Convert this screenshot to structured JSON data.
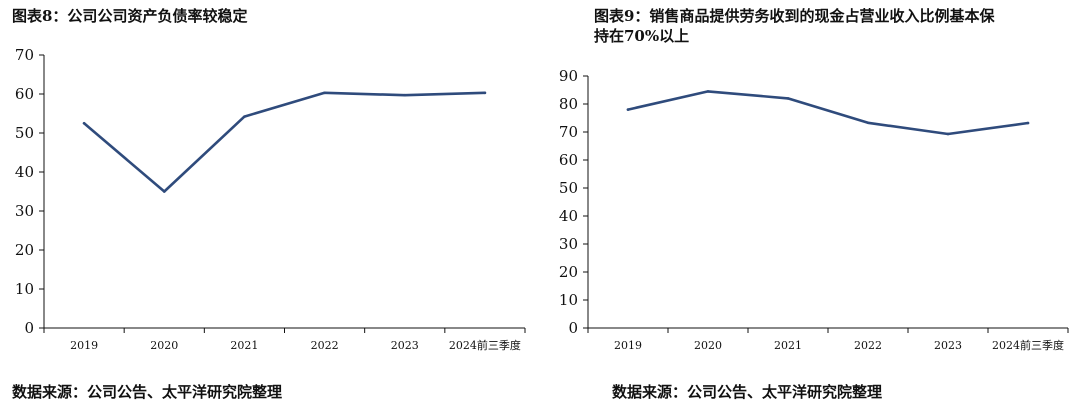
{
  "figures": [
    {
      "title": "图表8：公司公司资产负债率较稳定",
      "title_lines": [
        "图表8：公司公司资产负债率较稳定"
      ],
      "source": "数据来源：公司公告、太平洋研究院整理"
    },
    {
      "title": "图表9：销售商品提供劳务收到的现金占营业收入比例基本保持在70%以上",
      "title_lines": [
        "图表9：销售商品提供劳务收到的现金占营业收入比例基本保",
        "持在70%以上"
      ],
      "source": "数据来源：公司公告、太平洋研究院整理"
    }
  ],
  "colors": {
    "line": "#2f4b7c",
    "axis": "#111111"
  },
  "chart_data": [
    {
      "type": "line",
      "title": "图表8：公司公司资产负债率较稳定",
      "categories": [
        "2019",
        "2020",
        "2021",
        "2022",
        "2023",
        "2024前三季度"
      ],
      "series": [
        {
          "values": [
            52.5,
            35.0,
            54.2,
            60.3,
            59.7,
            60.3
          ]
        }
      ],
      "ylim": [
        0,
        70
      ],
      "yticks": [
        0,
        10,
        20,
        30,
        40,
        50,
        60,
        70
      ],
      "xlabel": "",
      "ylabel": "",
      "grid": false,
      "legend": "none"
    },
    {
      "type": "line",
      "title": "图表9：销售商品提供劳务收到的现金占营业收入比例基本保持在70%以上",
      "categories": [
        "2019",
        "2020",
        "2021",
        "2022",
        "2023",
        "2024前三季度"
      ],
      "series": [
        {
          "values": [
            78.0,
            84.5,
            82.0,
            73.3,
            69.3,
            73.2
          ]
        }
      ],
      "ylim": [
        0,
        90
      ],
      "yticks": [
        0,
        10,
        20,
        30,
        40,
        50,
        60,
        70,
        80,
        90
      ],
      "xlabel": "",
      "ylabel": "",
      "grid": false,
      "legend": "none"
    }
  ]
}
